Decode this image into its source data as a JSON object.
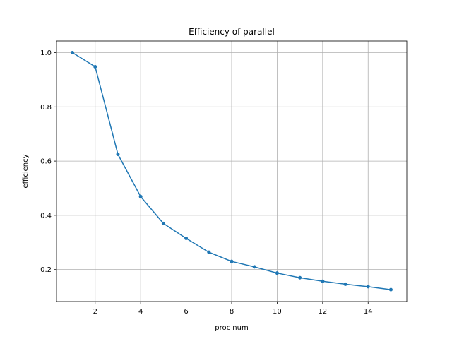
{
  "chart_data": {
    "type": "line",
    "title": "Efficiency of parallel",
    "xlabel": "proc num",
    "ylabel": "efficiency",
    "xlim": [
      0.3,
      15.7
    ],
    "ylim": [
      0.082,
      1.043
    ],
    "xticks": [
      2,
      4,
      6,
      8,
      10,
      12,
      14
    ],
    "yticks": [
      0.2,
      0.4,
      0.6,
      0.8,
      1.0
    ],
    "ytick_labels": [
      "0.2",
      "0.4",
      "0.6",
      "0.8",
      "1.0"
    ],
    "grid": true,
    "color": "#1f77b4",
    "series": [
      {
        "x": [
          1,
          2,
          3,
          4,
          5,
          6,
          7,
          8,
          9,
          10,
          11,
          12,
          13,
          14,
          15
        ],
        "values": [
          1.0,
          0.948,
          0.625,
          0.469,
          0.37,
          0.315,
          0.264,
          0.23,
          0.21,
          0.187,
          0.17,
          0.157,
          0.146,
          0.137,
          0.126
        ]
      }
    ]
  }
}
